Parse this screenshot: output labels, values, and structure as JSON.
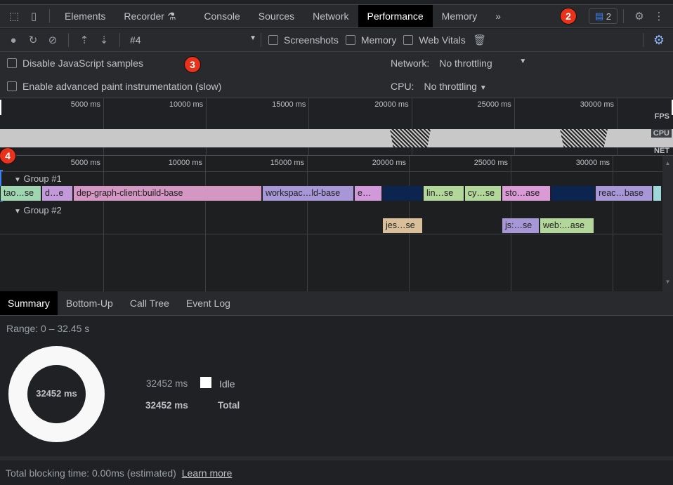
{
  "tabs": [
    {
      "label": "Elements"
    },
    {
      "label": "Recorder"
    },
    {
      "label": "Console"
    },
    {
      "label": "Sources"
    },
    {
      "label": "Network"
    },
    {
      "label": "Performance",
      "active": true
    },
    {
      "label": "Memory"
    }
  ],
  "issues_count": "2",
  "toolbar": {
    "recording": "#4",
    "screenshots": "Screenshots",
    "memory": "Memory",
    "web_vitals": "Web Vitals"
  },
  "settings": {
    "disable_js": "Disable JavaScript samples",
    "paint": "Enable advanced paint instrumentation (slow)",
    "network_label": "Network:",
    "network_value": "No throttling",
    "cpu_label": "CPU:",
    "cpu_value": "No throttling"
  },
  "overview": {
    "ticks": [
      "5000 ms",
      "10000 ms",
      "15000 ms",
      "20000 ms",
      "25000 ms",
      "30000 ms"
    ],
    "fps": "FPS",
    "cpu": "CPU",
    "net": "NET"
  },
  "flame": {
    "ticks": [
      "5000 ms",
      "10000 ms",
      "15000 ms",
      "20000 ms",
      "25000 ms",
      "30000 ms"
    ],
    "group1": {
      "label": "Group #1",
      "blocks": [
        {
          "label": "tao…se",
          "start": 0,
          "end": 2000,
          "color": "#9fd6b1"
        },
        {
          "label": "d…e",
          "start": 2035,
          "end": 3550,
          "color": "#c29ad9"
        },
        {
          "label": "dep-graph-client:build-base",
          "start": 3585,
          "end": 12830,
          "color": "#d497c3"
        },
        {
          "label": "workspac…ld-base",
          "start": 12860,
          "end": 17350,
          "color": "#a897d7"
        },
        {
          "label": "e…",
          "start": 17380,
          "end": 18720,
          "color": "#d199d9"
        },
        {
          "label": "",
          "start": 18750,
          "end": 20730,
          "color": "#0c2550"
        },
        {
          "label": "lin…se",
          "start": 20760,
          "end": 22760,
          "color": "#b3d69a"
        },
        {
          "label": "cy…se",
          "start": 22790,
          "end": 24590,
          "color": "#b3d69a"
        },
        {
          "label": "sto…ase",
          "start": 24620,
          "end": 27000,
          "color": "#d99ad6"
        },
        {
          "label": "",
          "start": 27030,
          "end": 29180,
          "color": "#0c2550"
        },
        {
          "label": "reac…base",
          "start": 29210,
          "end": 32000,
          "color": "#a897d7"
        },
        {
          "label": "",
          "start": 32040,
          "end": 32450,
          "color": "#9fd8d8"
        }
      ]
    },
    "group2": {
      "label": "Group #2",
      "blocks": [
        {
          "label": "jes…se",
          "start": 18760,
          "end": 20730,
          "color": "#d9c09a"
        },
        {
          "label": "js:…se",
          "start": 24620,
          "end": 26450,
          "color": "#a897d7"
        },
        {
          "label": "web:…ase",
          "start": 26480,
          "end": 29140,
          "color": "#b3d69a"
        }
      ]
    }
  },
  "bottom_tabs": [
    {
      "label": "Summary",
      "active": true
    },
    {
      "label": "Bottom-Up"
    },
    {
      "label": "Call Tree"
    },
    {
      "label": "Event Log"
    }
  ],
  "summary": {
    "range": "Range: 0 – 32.45 s",
    "center": "32452 ms",
    "idle_value": "32452 ms",
    "idle_label": "Idle",
    "idle_color": "#ffffff",
    "total_value": "32452 ms",
    "total_label": "Total"
  },
  "footer": {
    "text": "Total blocking time: 0.00ms (estimated)",
    "link": "Learn more"
  },
  "annotations": [
    "2",
    "3",
    "4"
  ]
}
